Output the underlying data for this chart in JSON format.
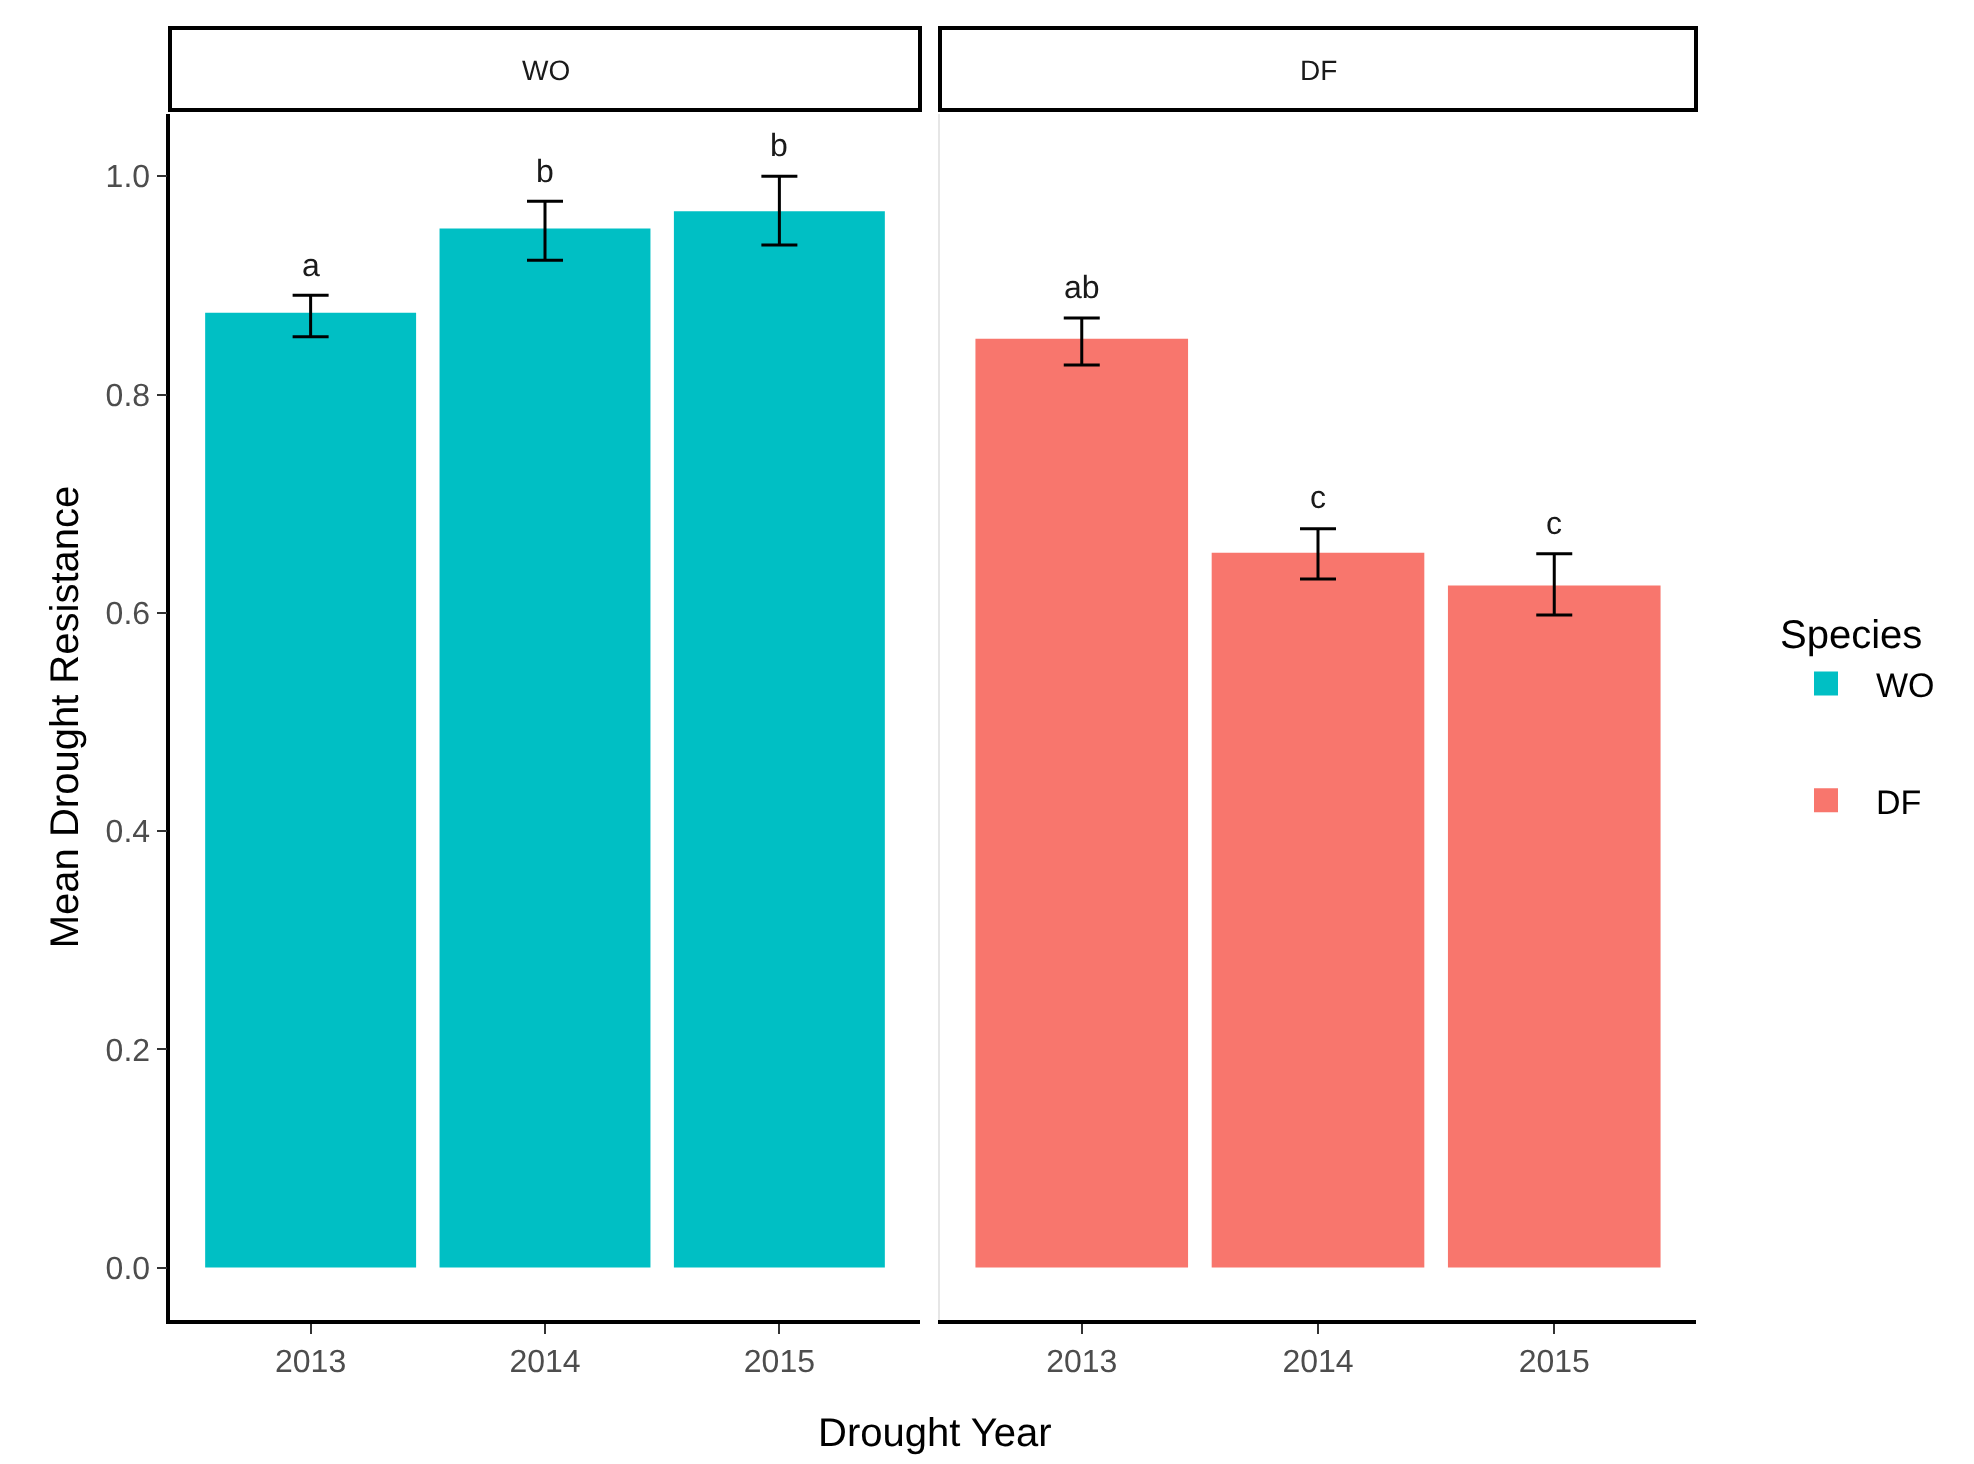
{
  "chart_data": [
    {
      "type": "bar",
      "title": "WO",
      "xlabel": "Drought Year",
      "ylabel": "Mean Drought Resistance",
      "legend_title": "Species",
      "legend": "right",
      "categories": [
        "2013",
        "2014",
        "2015"
      ],
      "series": [
        {
          "name": "WO",
          "color": "#00bfc4",
          "values": [
            0.875,
            0.952,
            0.968
          ],
          "errors": [
            [
              0.853,
              0.891
            ],
            [
              0.923,
              0.977
            ],
            [
              0.937,
              1.0
            ]
          ]
        }
      ],
      "ylim": [
        -0.048,
        1.057
      ],
      "yticks": [
        {
          "value": 0,
          "label": "0.0"
        },
        0.2,
        0.4,
        0.6,
        0.8,
        {
          "value": 1,
          "label": "1.0"
        }
      ],
      "grid": false,
      "annotations": [
        {
          "text": "a",
          "x": "2013",
          "y": 0.891
        },
        {
          "text": "b",
          "x": "2014",
          "y": 0.977
        },
        {
          "text": "b",
          "x": "2015",
          "y": 1.0
        }
      ]
    },
    {
      "type": "bar",
      "title": "DF",
      "legend": "right",
      "tick_labels": "x",
      "categories": [
        "2013",
        "2014",
        "2015"
      ],
      "series": [
        {
          "name": "DF",
          "color": "#f8766d",
          "values": [
            0.851,
            0.655,
            0.625
          ],
          "errors": [
            [
              0.827,
              0.87
            ],
            [
              0.631,
              0.677
            ],
            [
              0.598,
              0.654
            ]
          ]
        }
      ],
      "ylim": [
        -0.048,
        1.057
      ],
      "grid": false,
      "annotations": [
        {
          "text": "ab",
          "x": "2013",
          "y": 0.87
        },
        {
          "text": "c",
          "x": "2014",
          "y": 0.677
        },
        {
          "text": "c",
          "x": "2015",
          "y": 0.654
        }
      ]
    }
  ]
}
